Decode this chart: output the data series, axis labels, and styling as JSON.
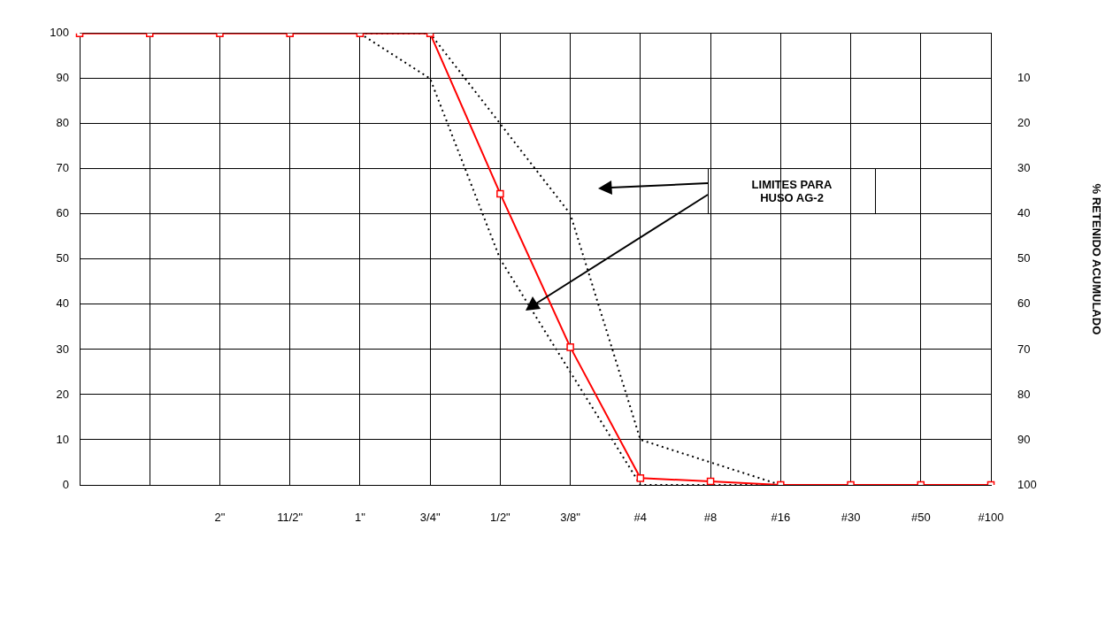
{
  "chart_data": {
    "type": "line",
    "y2label": "% RETENIDO ACUMULADO",
    "categories": [
      null,
      null,
      "2\"",
      "11/2\"",
      "1\"",
      "3/4\"",
      "1/2\"",
      "3/8\"",
      "#4",
      "#8",
      "#16",
      "#30",
      "#50",
      "#100"
    ],
    "ylim": [
      0,
      100
    ],
    "yticks": [
      0,
      10,
      20,
      30,
      40,
      50,
      60,
      70,
      80,
      90,
      100
    ],
    "y2lim": [
      100,
      0
    ],
    "y2ticks": [
      10,
      20,
      30,
      40,
      50,
      60,
      70,
      80,
      90,
      100
    ],
    "grid": true,
    "series": [
      {
        "color": "#ff0000",
        "marker": "square",
        "line_style": "solid",
        "values": [
          100,
          100,
          100,
          100,
          100,
          100,
          64.5,
          30.5,
          1.5,
          0.8,
          0,
          0,
          0,
          0
        ]
      },
      {
        "color": "#000000",
        "marker": "none",
        "line_style": "dotted",
        "values": [
          null,
          null,
          null,
          null,
          100,
          100,
          80,
          60,
          10,
          5,
          0,
          null,
          null,
          null
        ]
      },
      {
        "color": "#000000",
        "marker": "none",
        "line_style": "dotted",
        "values": [
          null,
          null,
          null,
          null,
          100,
          90,
          50,
          25,
          0,
          0,
          0,
          null,
          null,
          null
        ]
      }
    ],
    "annotations": [
      "LIMITES PARA HUSO AG-2"
    ]
  }
}
